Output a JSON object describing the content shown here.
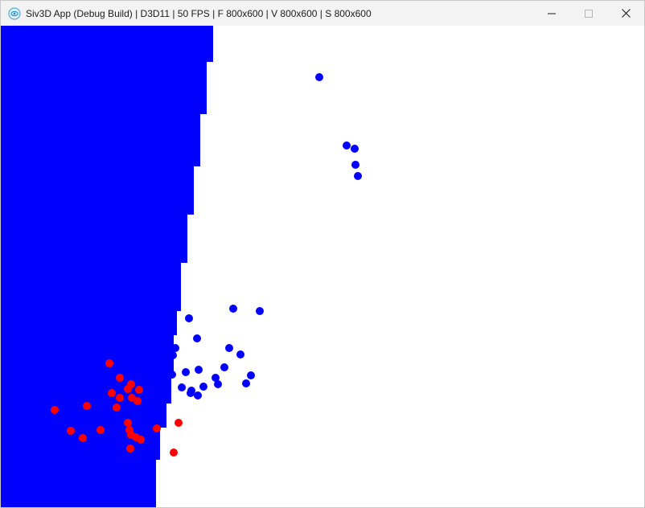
{
  "window": {
    "title": "Siv3D App (Debug Build) | D3D11 | 50 FPS | F 800x600 | V 800x600 | S 800x600",
    "icon": "siv3d-app-icon",
    "controls": {
      "minimize_icon": "minimize-icon",
      "maximize_icon": "maximize-icon",
      "close_icon": "close-icon"
    }
  },
  "scene": {
    "background_color": "#ffffff",
    "blue_color": "#0000ff",
    "blue_dot_color": "#0000e0",
    "red_color": "#ff0000"
  }
}
